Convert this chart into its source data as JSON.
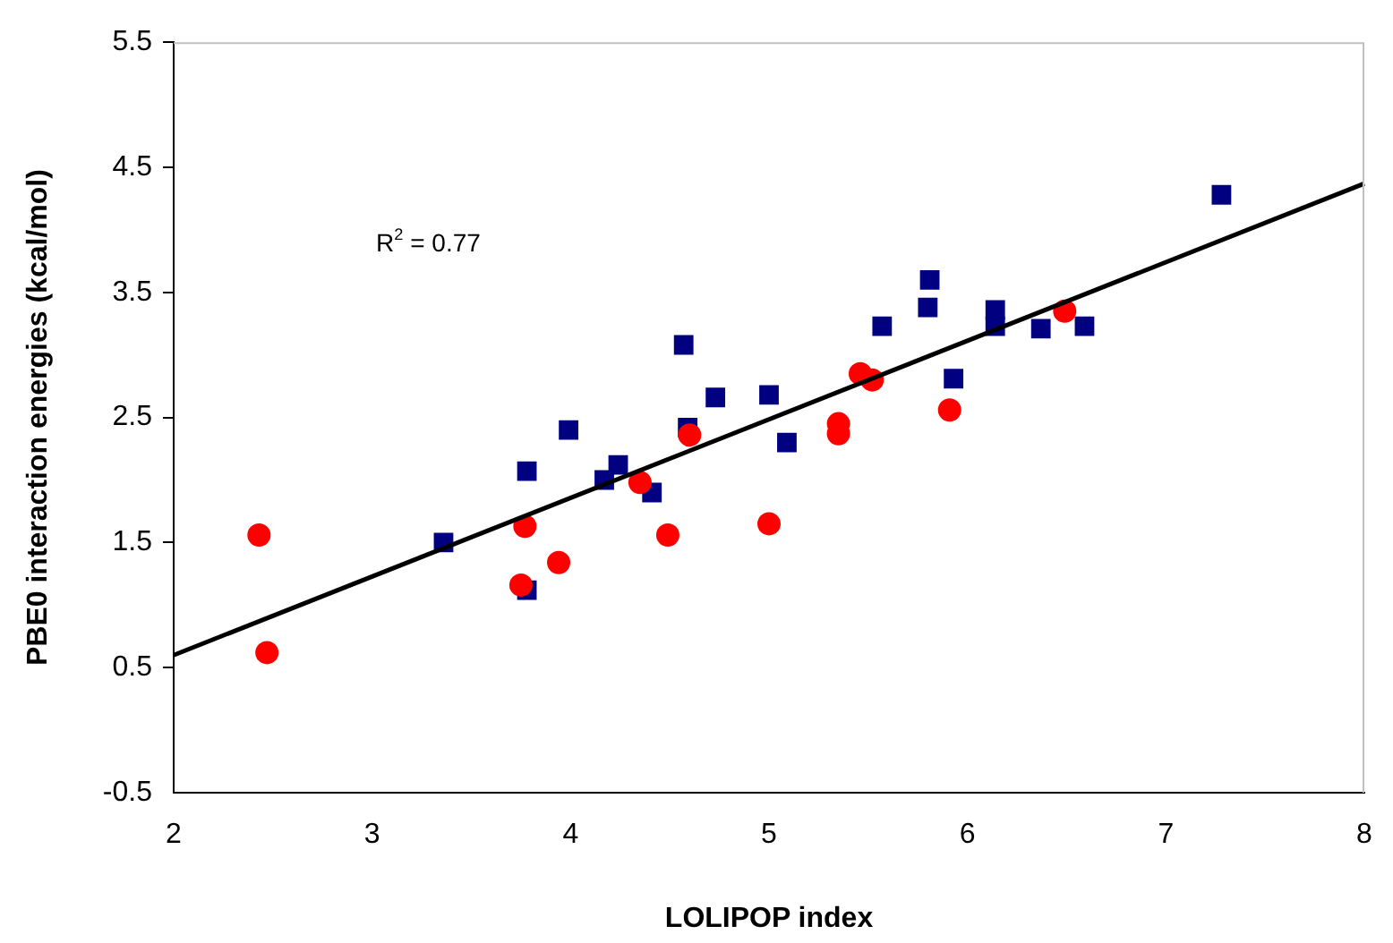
{
  "chart_data": {
    "type": "scatter",
    "xlabel": "LOLIPOP index",
    "ylabel": "PBE0 interaction energies (kcal/mol)",
    "xlim": [
      2,
      8
    ],
    "xticks": [
      2,
      3,
      4,
      5,
      6,
      7,
      8
    ],
    "ylim": [
      -0.5,
      5.5
    ],
    "yticks": [
      -0.5,
      0.5,
      1.5,
      2.5,
      3.5,
      4.5,
      5.5
    ],
    "grid": false,
    "legend": false,
    "annotations": [
      "R$^{2}$ = 0.77"
    ],
    "series": [
      {
        "color": "#000080",
        "marker": "square",
        "x": [
          3.36,
          3.78,
          3.78,
          3.99,
          4.17,
          4.24,
          4.41,
          4.57,
          4.59,
          4.73,
          5.0,
          5.09,
          5.57,
          5.8,
          5.81,
          5.93,
          6.14,
          6.14,
          6.37,
          6.59,
          7.28
        ],
        "values": [
          1.5,
          2.07,
          1.12,
          2.4,
          2.0,
          2.12,
          1.9,
          3.08,
          2.42,
          2.66,
          2.68,
          2.3,
          3.23,
          3.38,
          3.6,
          2.81,
          3.36,
          3.23,
          3.21,
          3.23,
          4.28
        ]
      },
      {
        "color": "#ff0000",
        "marker": "circle",
        "x": [
          2.43,
          2.47,
          3.75,
          3.77,
          3.94,
          4.35,
          4.49,
          4.6,
          5.0,
          5.35,
          5.35,
          5.46,
          5.52,
          5.91,
          6.49
        ],
        "values": [
          1.56,
          0.62,
          1.16,
          1.63,
          1.34,
          1.98,
          1.56,
          2.36,
          1.65,
          2.45,
          2.37,
          2.85,
          2.8,
          2.56,
          3.35
        ]
      },
      {
        "type": "line",
        "color": "#000000",
        "marker": "none",
        "line_style": "solid",
        "x": [
          2,
          8
        ],
        "values": [
          0.6,
          4.37
        ]
      }
    ]
  }
}
